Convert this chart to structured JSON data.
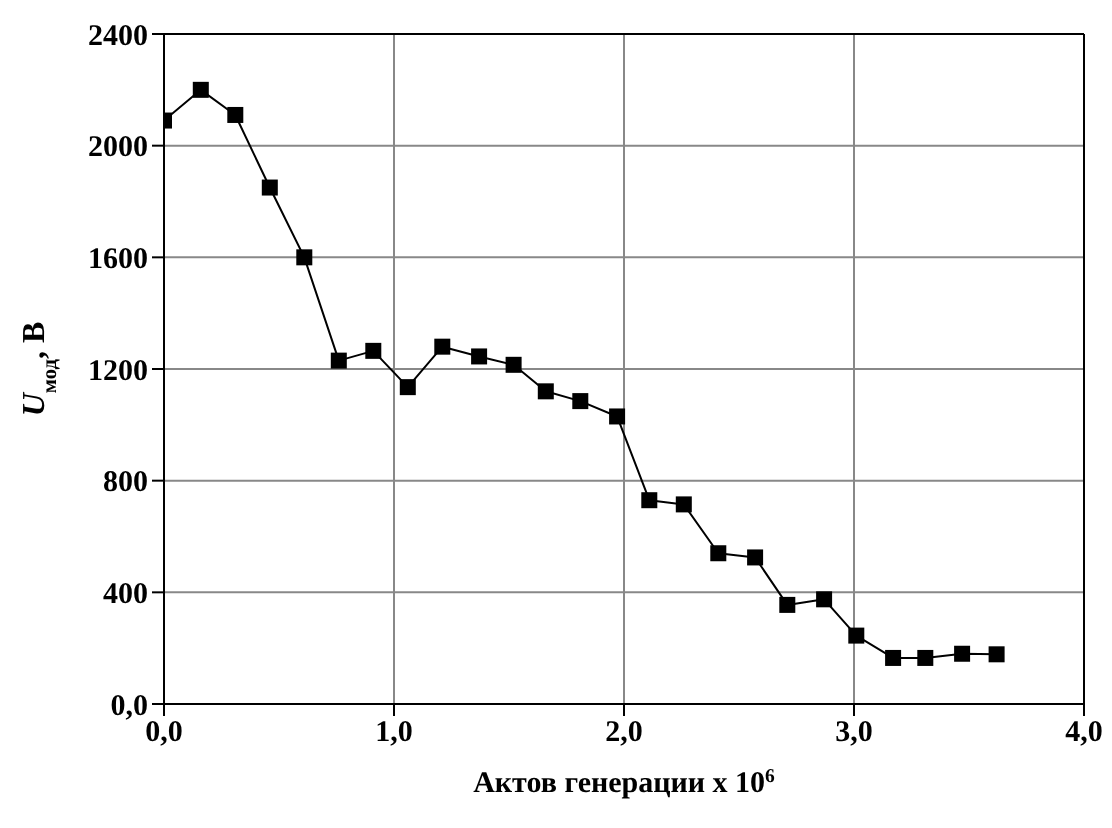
{
  "chart_data": {
    "type": "line",
    "xlabel": "Актов генерации x 10$^{6}$",
    "ylabel": "U$_{мод}$, В",
    "x": [
      0,
      0.16,
      0.31,
      0.46,
      0.61,
      0.76,
      0.91,
      1.06,
      1.21,
      1.37,
      1.52,
      1.66,
      1.81,
      1.97,
      2.11,
      2.26,
      2.41,
      2.57,
      2.71,
      2.87,
      3.01,
      3.17,
      3.31,
      3.47,
      3.62
    ],
    "series": [
      {
        "color": "#000000",
        "values": [
          2090,
          2200,
          2110,
          1850,
          1600,
          1230,
          1265,
          1135,
          1280,
          1245,
          1215,
          1120,
          1085,
          1030,
          730,
          715,
          540,
          525,
          355,
          375,
          245,
          165,
          165,
          180,
          178
        ]
      }
    ],
    "xlim": [
      0,
      4
    ],
    "xticks": [
      {
        "value": 0,
        "label": "0,0"
      },
      {
        "value": 1,
        "label": "1,0"
      },
      {
        "value": 2,
        "label": "2,0"
      },
      {
        "value": 3,
        "label": "3,0"
      },
      {
        "value": 4,
        "label": "4,0"
      }
    ],
    "ylim": [
      0,
      2400
    ],
    "yticks": [
      {
        "value": 0,
        "label": "0,0"
      },
      400,
      800,
      1200,
      1600,
      2000,
      2400
    ],
    "grid": true,
    "marker": "square",
    "line_style": "solid",
    "legend": false
  }
}
